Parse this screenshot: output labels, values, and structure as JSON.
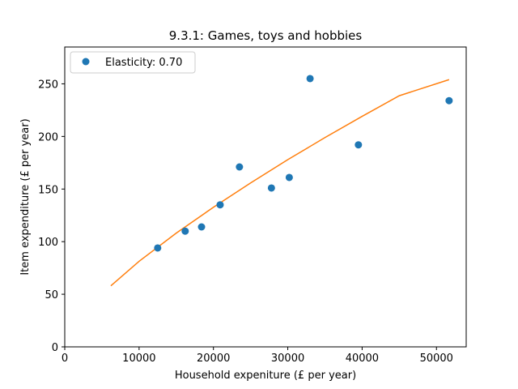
{
  "chart_data": {
    "type": "scatter",
    "title": "9.3.1: Games, toys and hobbies",
    "xlabel": "Household expeniture (£ per year)",
    "ylabel": "Item expenditure (£ per year)",
    "xlim": [
      0,
      54000
    ],
    "ylim": [
      0,
      285
    ],
    "xticks": [
      0,
      10000,
      20000,
      30000,
      40000,
      50000
    ],
    "yticks": [
      0,
      50,
      100,
      150,
      200,
      250
    ],
    "grid": false,
    "legend_position": "top-left",
    "series": [
      {
        "name": "Elasticity: 0.70",
        "kind": "points",
        "color": "#1f77b4",
        "x": [
          12500,
          16200,
          18400,
          20900,
          23500,
          27800,
          30200,
          33000,
          39500,
          51700
        ],
        "y": [
          94,
          110,
          114,
          135,
          171,
          151,
          161,
          255,
          192,
          234
        ]
      },
      {
        "kind": "line",
        "color": "#ff7f0e",
        "x": [
          6200,
          10000,
          15000,
          20000,
          25000,
          30000,
          35000,
          40000,
          45000,
          51700
        ],
        "y": [
          58,
          81.3,
          108.1,
          132.7,
          155.8,
          177.9,
          198.9,
          219.1,
          238.7,
          254
        ]
      }
    ]
  }
}
